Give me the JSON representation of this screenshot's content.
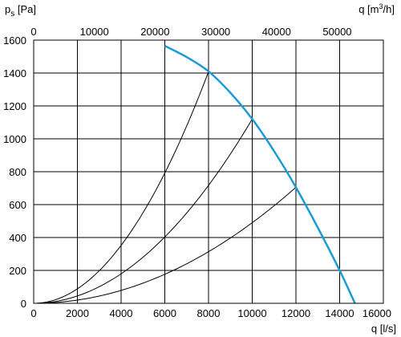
{
  "chart_data": {
    "type": "line",
    "title": "",
    "ylabel": {
      "main": "p",
      "sub": "s",
      "unit": " [Pa]"
    },
    "xlabel_bottom": "q [l/s]",
    "xlabel_top": {
      "main": "q [m",
      "sup": "3",
      "end": "/h]"
    },
    "xlim": [
      0,
      16000
    ],
    "ylim": [
      0,
      1600
    ],
    "x_ticks_bottom": [
      0,
      2000,
      4000,
      6000,
      8000,
      10000,
      12000,
      14000,
      16000
    ],
    "y_ticks": [
      0,
      200,
      400,
      600,
      800,
      1000,
      1200,
      1400,
      1600
    ],
    "top_axis_factor_m3h_per_ls": 3.6,
    "x_ticks_top": [
      0,
      10000,
      20000,
      30000,
      40000,
      50000
    ],
    "grid": true,
    "fan_curve": {
      "color": "#1a9ad6",
      "x": [
        6000,
        7000,
        8000,
        9000,
        10000,
        11000,
        12000,
        13000,
        14000,
        14700
      ],
      "y": [
        1565,
        1497,
        1410,
        1280,
        1120,
        925,
        705,
        460,
        200,
        0
      ]
    },
    "system_curves": [
      {
        "k": 2.2e-05,
        "x_max": 8000
      },
      {
        "k": 1.12e-05,
        "x_max": 10000
      },
      {
        "k": 4.9e-06,
        "x_max": 12000
      }
    ]
  }
}
